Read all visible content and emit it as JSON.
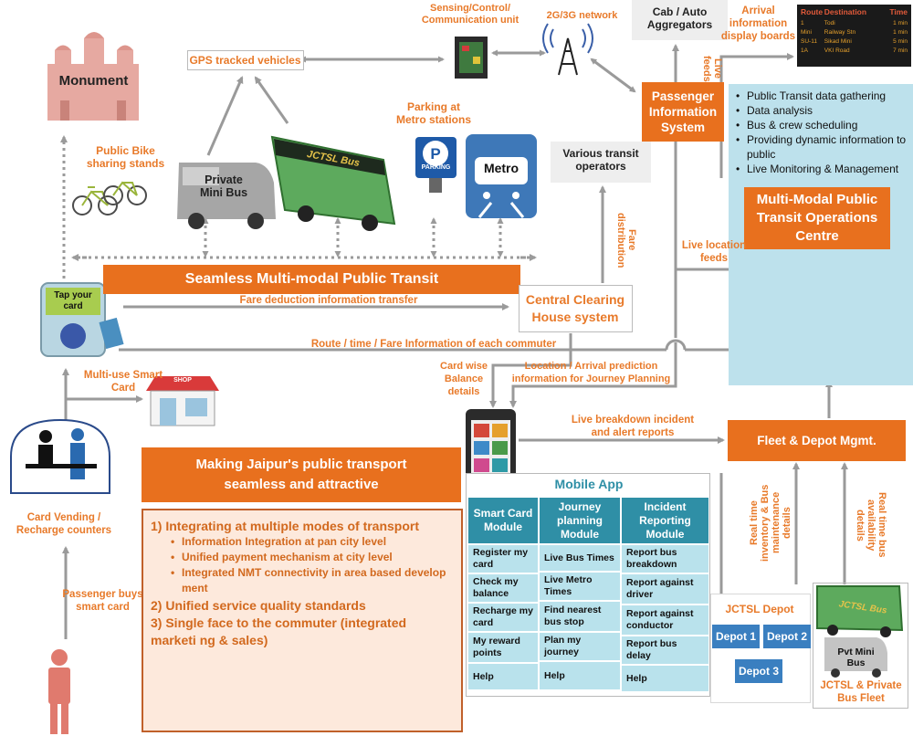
{
  "labels": {
    "sensing": "Sensing/Control/\nCommunication unit",
    "network": "2G/3G network",
    "cab": "Cab / Auto\nAggregators",
    "arrival_boards": "Arrival\ninformation\ndisplay boards",
    "live_feeds": "Live\nfeeds",
    "monument": "Monument",
    "gps": "GPS tracked vehicles",
    "parking": "Parking at\nMetro stations",
    "parking_sign": "PARKING",
    "metro": "Metro",
    "public_bike": "Public Bike\nsharing stands",
    "private_minibus": "Private\nMini Bus",
    "jctsl_bus": "JCTSL Bus",
    "transit_operators": "Various transit\noperators",
    "fare_distribution": "Fare\ndistribution",
    "live_location": "Live location\nfeeds",
    "tap_card": "Tap your\ncard",
    "fare_deduction": "Fare deduction information transfer",
    "route_info": "Route / time / Fare Information of each commuter",
    "multi_use_card": "Multi-use Smart\nCard",
    "shop": "SHOP",
    "card_balance": "Card wise\nBalance\ndetails",
    "location_prediction": "Location / Arrival prediction\ninformation for Journey Planning",
    "breakdown_alert": "Live breakdown incident\nand alert reports",
    "card_vending": "Card Vending /\nRecharge counters",
    "passenger_buys": "Passenger buys\nsmart card",
    "realtime_inventory": "Real time\ninventory & Bus\nmaintenance\ndetails",
    "realtime_availability": "Real time bus\navailability\ndetails",
    "jctsl_depot": "JCTSL Depot",
    "pvt_minibus": "Pvt Mini\nBus",
    "fleet_caption": "JCTSL & Private\nBus Fleet"
  },
  "boxes": {
    "passenger_info": "Passenger\nInformation\nSystem",
    "seamless": "Seamless Multi-modal Public Transit",
    "clearing_house": "Central Clearing\nHouse system",
    "ops_centre": "Multi-Modal Public\nTransit Operations\nCentre",
    "fleet_depot": "Fleet & Depot Mgmt.",
    "making_jaipur": "Making Jaipur's public transport\nseamless and attractive",
    "mobile_app": "Mobile App"
  },
  "ops_bullets": [
    "Public Transit data gathering",
    "Data analysis",
    "Bus & crew scheduling",
    "Providing dynamic information to public",
    "Live Monitoring & Management"
  ],
  "board": {
    "headers": [
      "Route",
      "Destination",
      "Time"
    ],
    "rows": [
      [
        "1",
        "Todi",
        "1 min"
      ],
      [
        "Mini",
        "Railway Stn",
        "1 min"
      ],
      [
        "SU-11",
        "Sikad Mini",
        "5 min"
      ],
      [
        "1A",
        "VKI Road",
        "7 min"
      ]
    ]
  },
  "goals": {
    "item1": "1) Integrating at multiple modes of transport",
    "sub": [
      "Information Integration at pan city level",
      "Unified payment mechanism at city level",
      "Integrated NMT connectivity in area based develop ment"
    ],
    "item2": "2) Unified service quality standards",
    "item3": "3) Single face to the commuter (integrated marketi ng & sales)"
  },
  "app_columns": [
    {
      "header": "Smart Card\nModule",
      "items": [
        "Register my card",
        "Check my balance",
        "Recharge my card",
        "My reward points",
        "Help"
      ]
    },
    {
      "header": "Journey\nplanning\nModule",
      "items": [
        "Live Bus Times",
        "Live Metro Times",
        "Find nearest bus stop",
        "Plan my journey",
        "Help"
      ]
    },
    {
      "header": "Incident\nReporting\nModule",
      "items": [
        "Report bus breakdown",
        "Report against driver",
        "Report against conductor",
        "Report bus delay",
        "Help"
      ]
    }
  ],
  "depots": [
    "Depot 1",
    "Depot 2",
    "Depot 3"
  ],
  "colors": {
    "accent_orange": "#e8701e",
    "label_orange": "#e87a2a",
    "teal": "#2f8fa6",
    "light_teal": "#b9e2ec",
    "goals_bg": "#fde9dc",
    "arrow_grey": "#9a9a9a"
  }
}
